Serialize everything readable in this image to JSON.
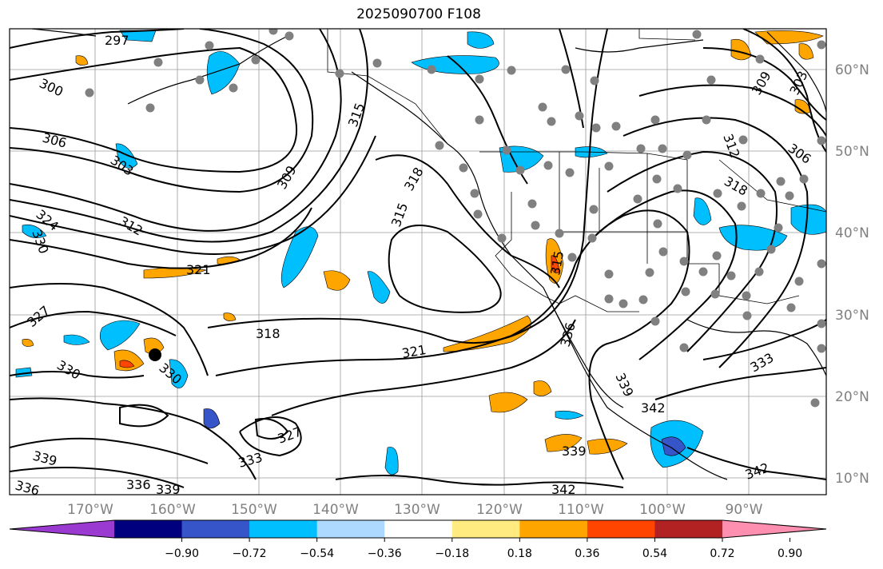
{
  "title": "2025090700 F108",
  "lat_labels": [
    "60°N",
    "50°N",
    "40°N",
    "30°N",
    "20°N",
    "10°N"
  ],
  "lon_labels": [
    "170°W",
    "160°W",
    "150°W",
    "140°W",
    "130°W",
    "120°W",
    "110°W",
    "100°W",
    "90°W"
  ],
  "contour_labels": [
    "297",
    "300",
    "306",
    "303",
    "309",
    "315",
    "318",
    "315",
    "312",
    "324",
    "330",
    "321",
    "327",
    "318",
    "321",
    "330",
    "330",
    "327",
    "333",
    "339",
    "336",
    "336",
    "339",
    "339",
    "342",
    "342",
    "342",
    "336",
    "333",
    "339",
    "309",
    "303",
    "306",
    "318",
    "312",
    "315"
  ],
  "colorbar": {
    "ticks": [
      "−0.90",
      "−0.72",
      "−0.54",
      "−0.36",
      "−0.18",
      "0.18",
      "0.36",
      "0.54",
      "0.72",
      "0.90"
    ],
    "colors": [
      "#9a3ad0",
      "#00007f",
      "#3555c8",
      "#00bfff",
      "#add8ff",
      "#ffffff",
      "#ffeb80",
      "#ffa500",
      "#ff4500",
      "#b22222",
      "#ff8fb0"
    ]
  }
}
